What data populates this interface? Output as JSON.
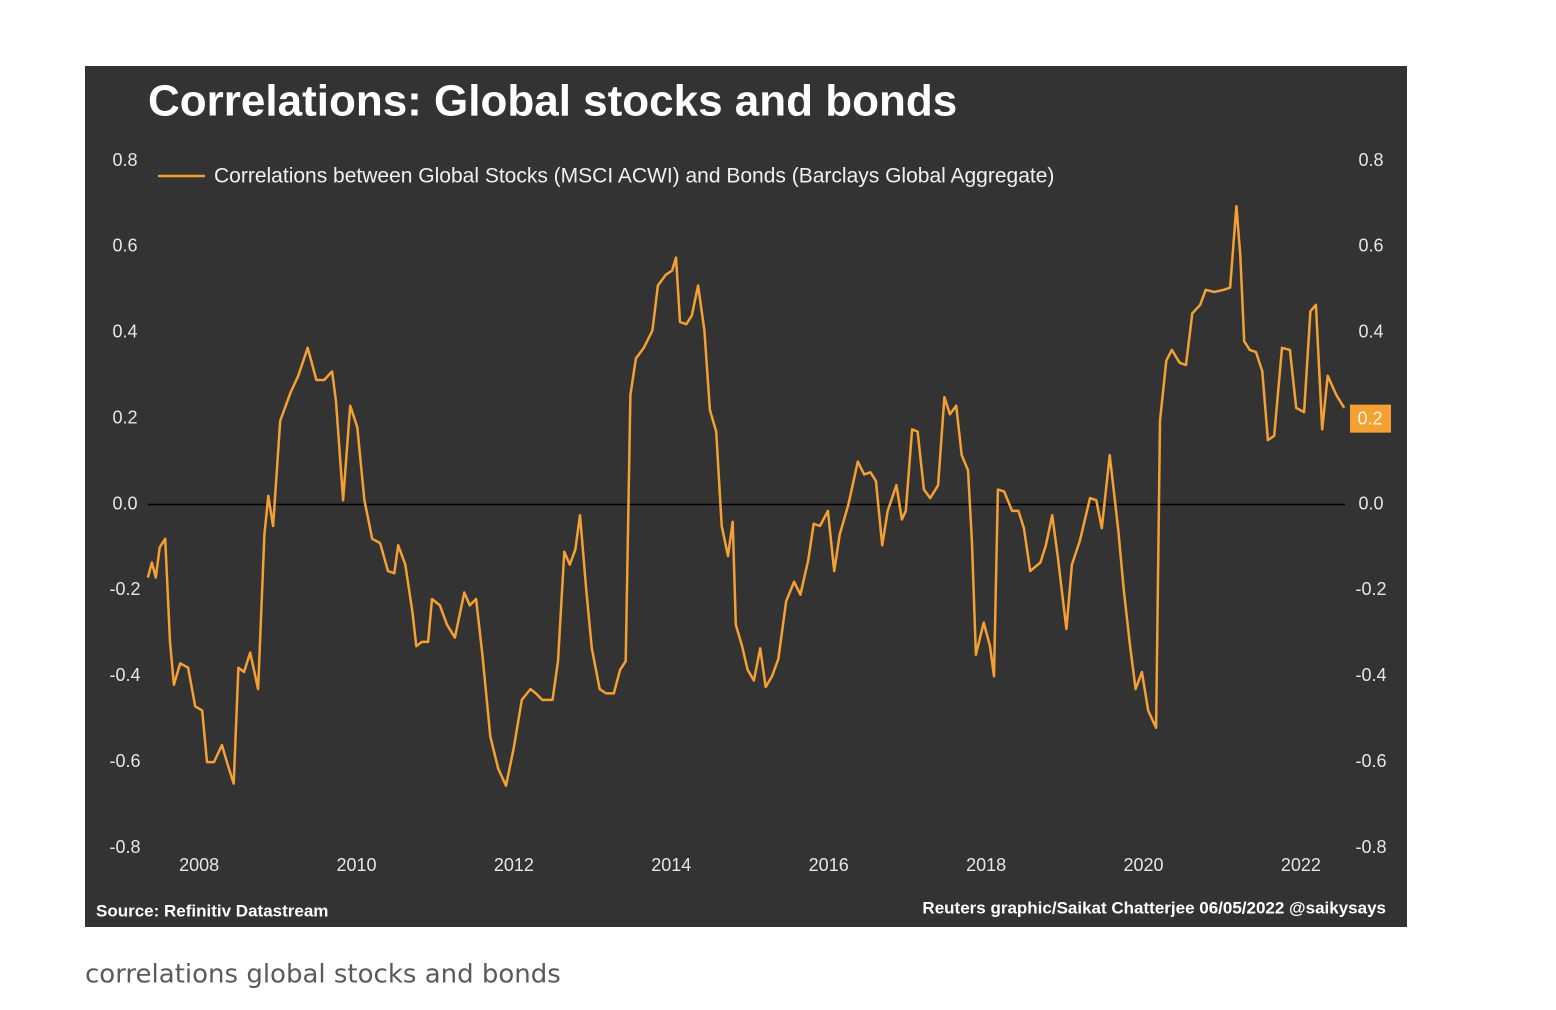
{
  "chart_data": {
    "type": "line",
    "title": "Correlations: Global stocks and bonds",
    "source": "Source: Refinitiv Datastream",
    "credit": "Reuters graphic/Saikat Chatterjee 06/05/2022 @saikysays",
    "caption": "correlations global stocks and bonds",
    "legend": "upper left",
    "zero_line": true,
    "xlim": [
      2007.3,
      2022.7
    ],
    "xticks": [
      2008,
      2010,
      2012,
      2014,
      2016,
      2018,
      2020,
      2022
    ],
    "ylim": [
      -0.8,
      0.8
    ],
    "yticks": [
      -0.8,
      -0.6,
      -0.4,
      -0.2,
      {
        "value": 0,
        "label": "0.0"
      },
      0.2,
      0.4,
      0.6,
      0.8
    ],
    "y2lim": [
      -0.8,
      0.8
    ],
    "y2ticks": [
      -0.8,
      -0.6,
      -0.4,
      -0.2,
      {
        "value": 0,
        "label": "0.0"
      },
      0.2,
      0.4,
      0.6,
      0.8
    ],
    "annotations": [
      {
        "text": "0.2",
        "y": 0.2
      }
    ],
    "x": [
      2007.35,
      2007.4,
      2007.45,
      2007.5,
      2007.57,
      2007.63,
      2007.68,
      2007.76,
      2007.86,
      2007.95,
      2008.04,
      2008.1,
      2008.19,
      2008.29,
      2008.37,
      2008.44,
      2008.5,
      2008.57,
      2008.65,
      2008.75,
      2008.83,
      2008.88,
      2008.94,
      2009.03,
      2009.16,
      2009.26,
      2009.38,
      2009.49,
      2009.59,
      2009.69,
      2009.74,
      2009.83,
      2009.92,
      2010.01,
      2010.1,
      2010.2,
      2010.3,
      2010.4,
      2010.48,
      2010.53,
      2010.62,
      2010.71,
      2010.76,
      2010.83,
      2010.91,
      2010.96,
      2011.06,
      2011.15,
      2011.25,
      2011.37,
      2011.44,
      2011.52,
      2011.6,
      2011.7,
      2011.8,
      2011.9,
      2012.0,
      2012.1,
      2012.21,
      2012.28,
      2012.36,
      2012.49,
      2012.56,
      2012.64,
      2012.71,
      2012.78,
      2012.84,
      2012.92,
      2012.99,
      2013.09,
      2013.17,
      2013.27,
      2013.35,
      2013.42,
      2013.48,
      2013.55,
      2013.65,
      2013.76,
      2013.83,
      2013.93,
      2014.01,
      2014.06,
      2014.11,
      2014.19,
      2014.26,
      2014.34,
      2014.42,
      2014.49,
      2014.57,
      2014.64,
      2014.72,
      2014.78,
      2014.82,
      2014.9,
      2014.97,
      2015.05,
      2015.13,
      2015.2,
      2015.28,
      2015.36,
      2015.46,
      2015.56,
      2015.64,
      2015.74,
      2015.81,
      2015.89,
      2015.99,
      2016.07,
      2016.14,
      2016.25,
      2016.37,
      2016.45,
      2016.53,
      2016.6,
      2016.68,
      2016.75,
      2016.86,
      2016.93,
      2016.98,
      2017.06,
      2017.13,
      2017.21,
      2017.29,
      2017.39,
      2017.47,
      2017.54,
      2017.62,
      2017.69,
      2017.77,
      2017.82,
      2017.87,
      2017.97,
      2018.05,
      2018.1,
      2018.15,
      2018.23,
      2018.33,
      2018.41,
      2018.48,
      2018.56,
      2018.69,
      2018.76,
      2018.84,
      2018.91,
      2019.02,
      2019.09,
      2019.19,
      2019.32,
      2019.4,
      2019.47,
      2019.57,
      2019.68,
      2019.75,
      2019.83,
      2019.9,
      2019.98,
      2020.06,
      2020.16,
      2020.21,
      2020.29,
      2020.36,
      2020.46,
      2020.54,
      2020.62,
      2020.72,
      2020.79,
      2020.9,
      2021.02,
      2021.1,
      2021.18,
      2021.23,
      2021.28,
      2021.35,
      2021.43,
      2021.51,
      2021.58,
      2021.66,
      2021.76,
      2021.86,
      2021.94,
      2022.04,
      2022.12,
      2022.19,
      2022.27,
      2022.34,
      2022.45,
      2022.55
    ],
    "series": [
      {
        "name": "Correlations between Global Stocks (MSCI ACWI) and Bonds (Barclays Global Aggregate)",
        "color": "#f5a033",
        "values": [
          -0.17,
          -0.135,
          -0.17,
          -0.1,
          -0.08,
          -0.32,
          -0.42,
          -0.37,
          -0.38,
          -0.47,
          -0.48,
          -0.6,
          -0.6,
          -0.56,
          -0.61,
          -0.65,
          -0.38,
          -0.39,
          -0.345,
          -0.43,
          -0.07,
          0.02,
          -0.05,
          0.195,
          0.26,
          0.3,
          0.365,
          0.29,
          0.29,
          0.31,
          0.24,
          0.01,
          0.23,
          0.18,
          0.01,
          -0.08,
          -0.09,
          -0.155,
          -0.16,
          -0.095,
          -0.14,
          -0.25,
          -0.33,
          -0.32,
          -0.32,
          -0.22,
          -0.235,
          -0.28,
          -0.31,
          -0.205,
          -0.235,
          -0.22,
          -0.35,
          -0.54,
          -0.615,
          -0.655,
          -0.565,
          -0.455,
          -0.43,
          -0.44,
          -0.455,
          -0.455,
          -0.365,
          -0.11,
          -0.14,
          -0.105,
          -0.025,
          -0.2,
          -0.335,
          -0.43,
          -0.44,
          -0.44,
          -0.385,
          -0.365,
          0.255,
          0.34,
          0.365,
          0.405,
          0.51,
          0.535,
          0.545,
          0.575,
          0.425,
          0.42,
          0.44,
          0.51,
          0.405,
          0.22,
          0.17,
          -0.05,
          -0.12,
          -0.04,
          -0.28,
          -0.33,
          -0.385,
          -0.41,
          -0.335,
          -0.425,
          -0.4,
          -0.36,
          -0.225,
          -0.18,
          -0.21,
          -0.13,
          -0.045,
          -0.05,
          -0.015,
          -0.155,
          -0.07,
          0.0,
          0.1,
          0.07,
          0.075,
          0.055,
          -0.095,
          -0.015,
          0.045,
          -0.035,
          -0.015,
          0.175,
          0.17,
          0.035,
          0.015,
          0.045,
          0.25,
          0.21,
          0.23,
          0.115,
          0.08,
          -0.085,
          -0.35,
          -0.275,
          -0.33,
          -0.4,
          0.035,
          0.03,
          -0.015,
          -0.015,
          -0.055,
          -0.155,
          -0.135,
          -0.095,
          -0.025,
          -0.12,
          -0.29,
          -0.14,
          -0.085,
          0.015,
          0.01,
          -0.055,
          0.115,
          -0.06,
          -0.2,
          -0.33,
          -0.43,
          -0.39,
          -0.48,
          -0.52,
          0.195,
          0.335,
          0.36,
          0.33,
          0.325,
          0.445,
          0.465,
          0.5,
          0.495,
          0.5,
          0.505,
          0.695,
          0.58,
          0.38,
          0.36,
          0.355,
          0.31,
          0.15,
          0.16,
          0.365,
          0.36,
          0.225,
          0.215,
          0.45,
          0.465,
          0.175,
          0.3,
          0.255,
          0.225
        ]
      }
    ]
  }
}
